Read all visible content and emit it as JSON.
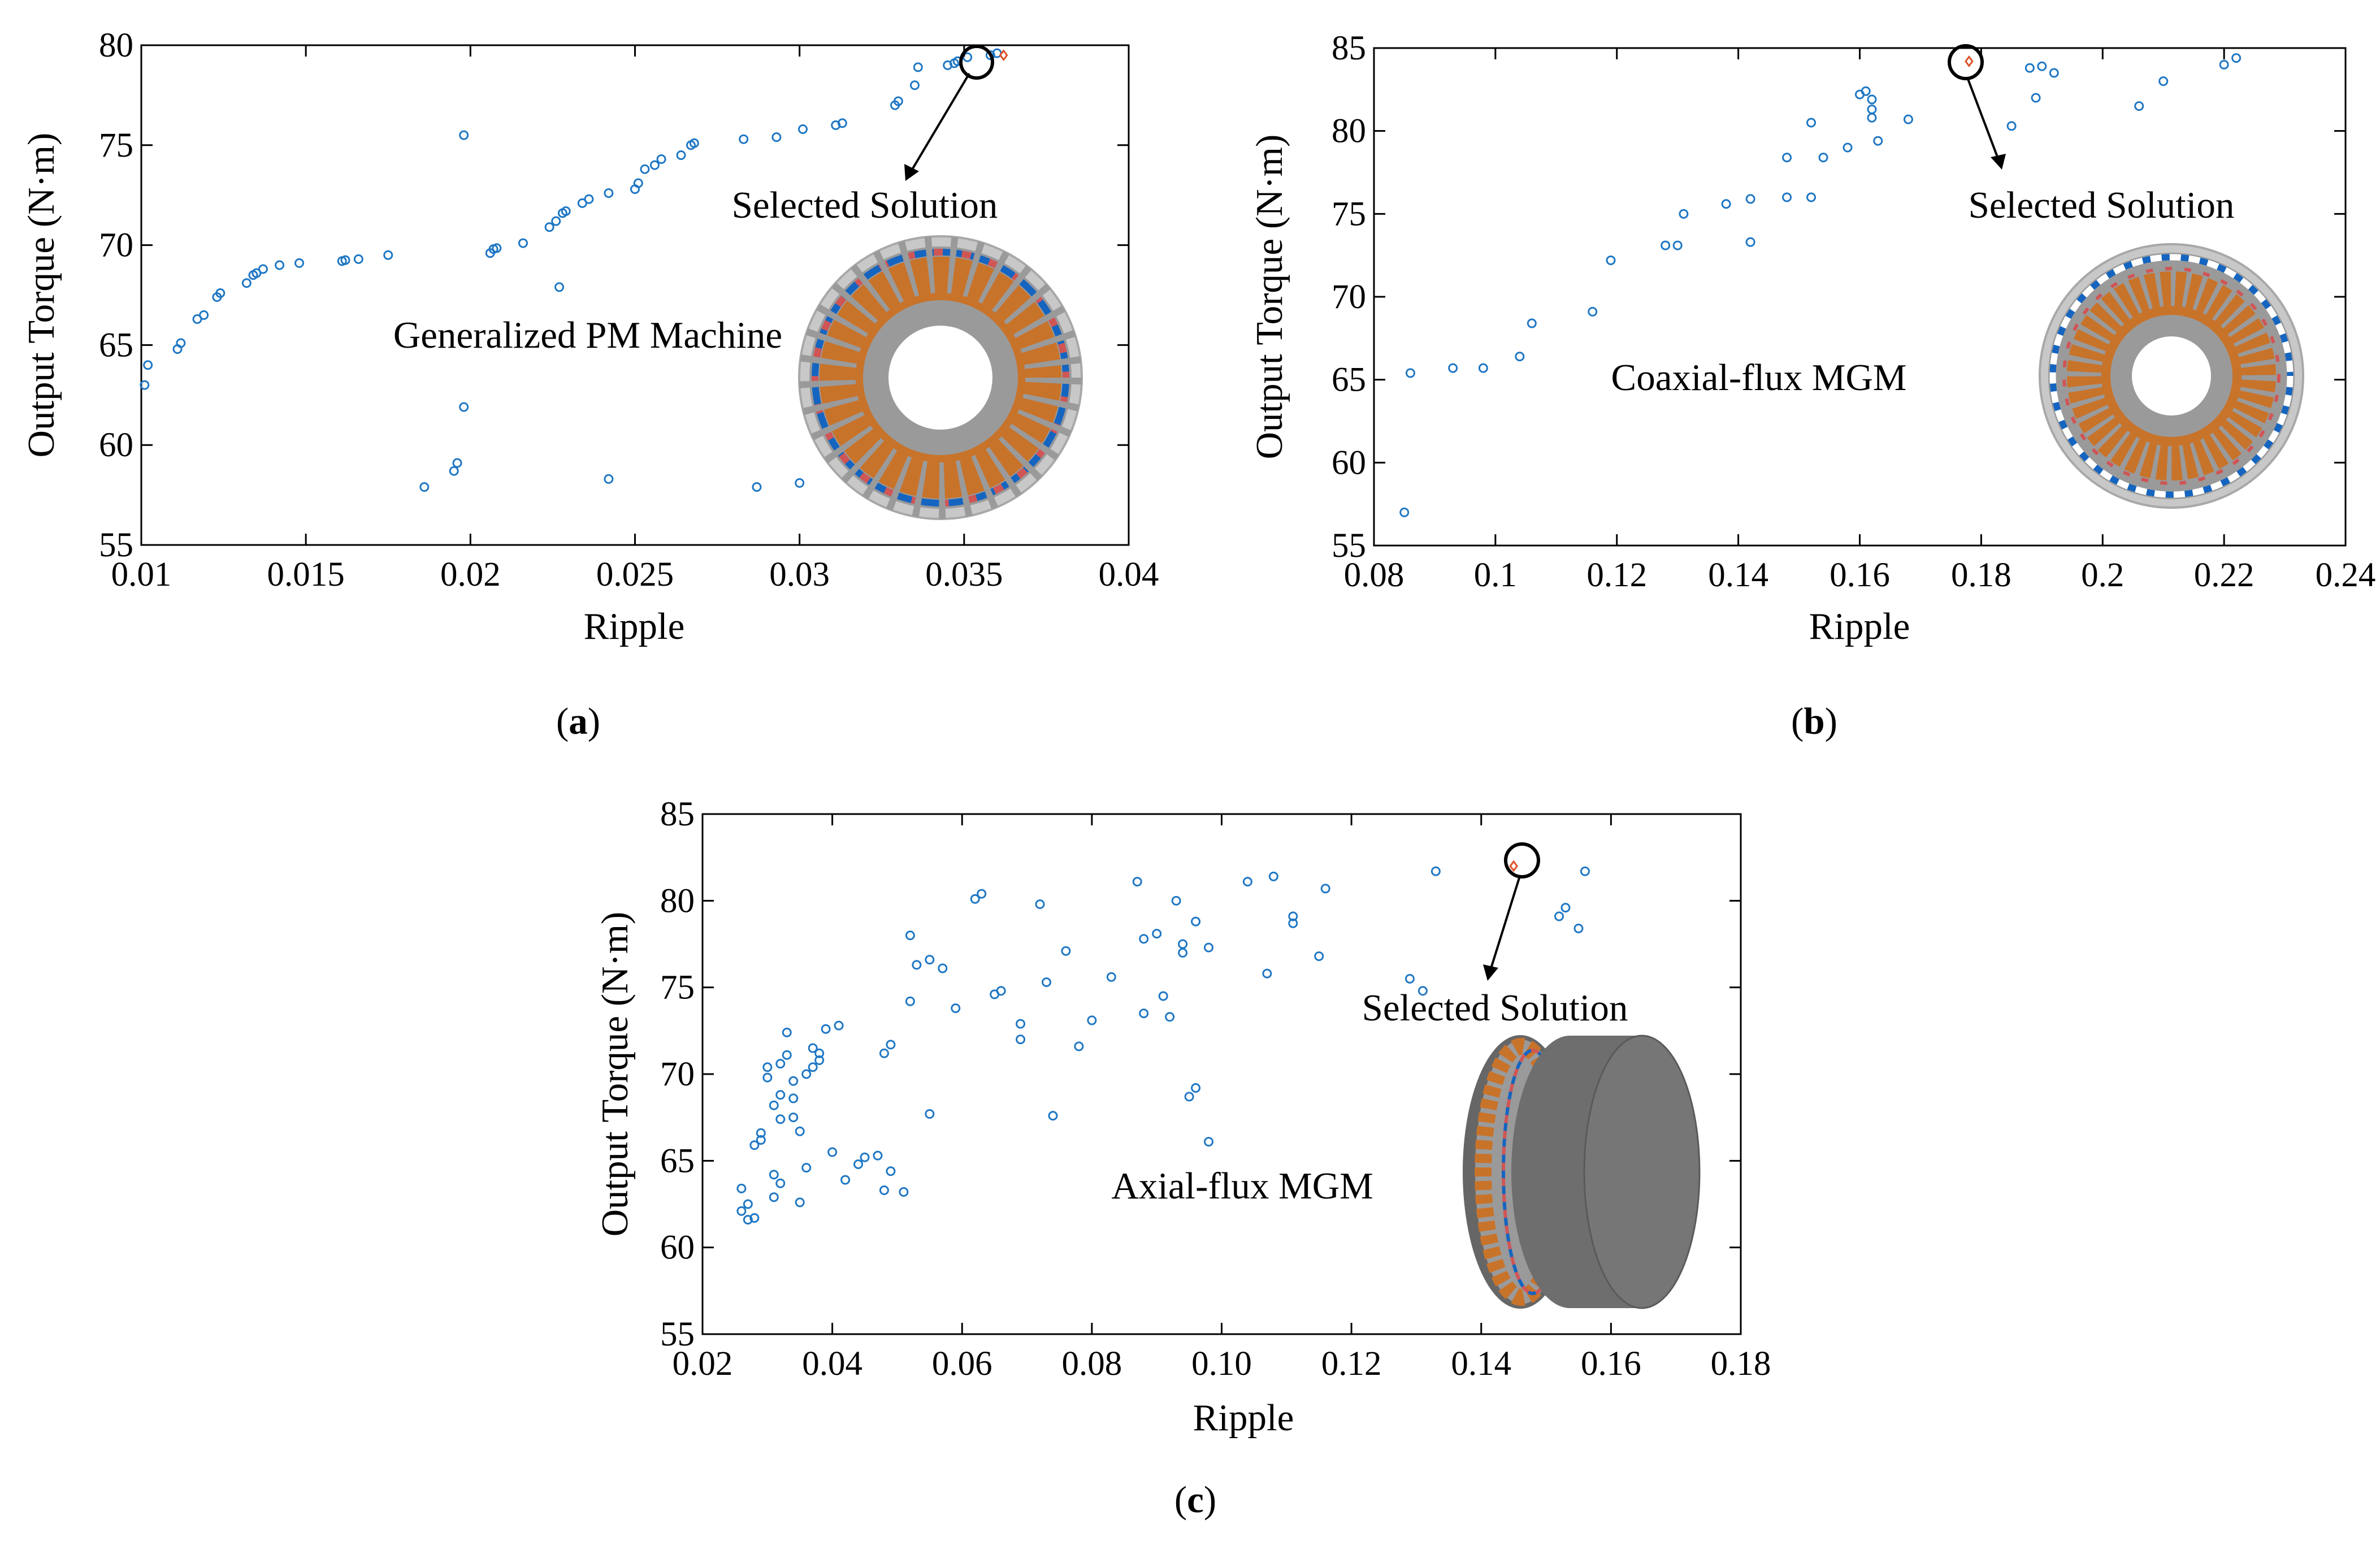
{
  "figure": {
    "captions": [
      {
        "open": "(",
        "letter": "a",
        "close": ")"
      },
      {
        "open": "(",
        "letter": "b",
        "close": ")"
      },
      {
        "open": "(",
        "letter": "c",
        "close": ")"
      }
    ]
  },
  "colors": {
    "point": "#1f77c4",
    "selected": "#e0502a",
    "frame": "#000000",
    "copper": "#c8732a",
    "steel": "#9a9a9a",
    "pm_blue": "#1565c0",
    "pm_red": "#d05555"
  },
  "chart_data": [
    {
      "type": "scatter",
      "panel": "a",
      "title": "",
      "xlabel": "Ripple",
      "ylabel": "Output Torque (N·m)",
      "xlim": [
        0.01,
        0.04
      ],
      "ylim": [
        55,
        80
      ],
      "xticks": [
        0.01,
        0.015,
        0.02,
        0.025,
        0.03,
        0.035,
        0.04
      ],
      "xtick_labels": [
        "0.01",
        "0.015",
        "0.02",
        "0.025",
        "0.03",
        "0.035",
        "0.04"
      ],
      "yticks": [
        55,
        60,
        65,
        70,
        75,
        80
      ],
      "ytick_labels": [
        "55",
        "60",
        "65",
        "70",
        "75",
        "80"
      ],
      "annotations": {
        "selected": "Selected Solution",
        "machine": "Generalized PM Machine"
      },
      "inset": "radial",
      "selected_point": [
        0.0362,
        79.5
      ],
      "points": [
        [
          0.0101,
          63.0
        ],
        [
          0.0102,
          64.0
        ],
        [
          0.0111,
          64.8
        ],
        [
          0.0112,
          65.1
        ],
        [
          0.0117,
          66.3
        ],
        [
          0.0119,
          66.5
        ],
        [
          0.0123,
          67.4
        ],
        [
          0.0124,
          67.6
        ],
        [
          0.0132,
          68.1
        ],
        [
          0.0134,
          68.5
        ],
        [
          0.0135,
          68.6
        ],
        [
          0.0137,
          68.8
        ],
        [
          0.0142,
          69.0
        ],
        [
          0.0148,
          69.1
        ],
        [
          0.0161,
          69.2
        ],
        [
          0.0162,
          69.25
        ],
        [
          0.0166,
          69.3
        ],
        [
          0.0175,
          69.5
        ],
        [
          0.0198,
          75.5
        ],
        [
          0.0206,
          69.6
        ],
        [
          0.0207,
          69.8
        ],
        [
          0.0208,
          69.85
        ],
        [
          0.0216,
          70.1
        ],
        [
          0.0224,
          70.9
        ],
        [
          0.0226,
          71.2
        ],
        [
          0.0228,
          71.6
        ],
        [
          0.0229,
          71.7
        ],
        [
          0.0234,
          72.1
        ],
        [
          0.0236,
          72.3
        ],
        [
          0.0242,
          72.6
        ],
        [
          0.025,
          72.8
        ],
        [
          0.0251,
          73.1
        ],
        [
          0.0253,
          73.8
        ],
        [
          0.0256,
          74.0
        ],
        [
          0.0258,
          74.3
        ],
        [
          0.0264,
          74.5
        ],
        [
          0.0267,
          75.0
        ],
        [
          0.0268,
          75.1
        ],
        [
          0.0283,
          75.3
        ],
        [
          0.0293,
          75.4
        ],
        [
          0.0301,
          75.8
        ],
        [
          0.0311,
          76.0
        ],
        [
          0.0313,
          76.1
        ],
        [
          0.0329,
          77.0
        ],
        [
          0.033,
          77.2
        ],
        [
          0.0335,
          78.0
        ],
        [
          0.0336,
          78.9
        ],
        [
          0.0345,
          79.0
        ],
        [
          0.0347,
          79.1
        ],
        [
          0.0348,
          79.2
        ],
        [
          0.0351,
          79.4
        ],
        [
          0.0358,
          79.5
        ],
        [
          0.036,
          79.6
        ],
        [
          0.0227,
          67.9
        ],
        [
          0.0198,
          61.9
        ],
        [
          0.0186,
          57.9
        ],
        [
          0.0195,
          58.7
        ],
        [
          0.0196,
          59.1
        ],
        [
          0.0242,
          58.3
        ],
        [
          0.0287,
          57.9
        ],
        [
          0.03,
          58.1
        ]
      ]
    },
    {
      "type": "scatter",
      "panel": "b",
      "title": "",
      "xlabel": "Ripple",
      "ylabel": "Output Torque (N·m)",
      "xlim": [
        0.08,
        0.24
      ],
      "ylim": [
        55,
        85
      ],
      "xticks": [
        0.08,
        0.1,
        0.12,
        0.14,
        0.16,
        0.18,
        0.2,
        0.22,
        0.24
      ],
      "xtick_labels": [
        "0.08",
        "0.1",
        "0.12",
        "0.14",
        "0.16",
        "0.18",
        "0.2",
        "0.22",
        "0.24"
      ],
      "yticks": [
        55,
        60,
        65,
        70,
        75,
        80,
        85
      ],
      "ytick_labels": [
        "55",
        "60",
        "65",
        "70",
        "75",
        "80",
        "85"
      ],
      "annotations": {
        "selected": "Selected Solution",
        "machine": "Coaxial-flux MGM"
      },
      "inset": "radial",
      "selected_point": [
        0.178,
        84.2
      ],
      "points": [
        [
          0.085,
          57.0
        ],
        [
          0.086,
          65.4
        ],
        [
          0.093,
          65.7
        ],
        [
          0.098,
          65.7
        ],
        [
          0.104,
          66.4
        ],
        [
          0.106,
          68.4
        ],
        [
          0.116,
          69.1
        ],
        [
          0.119,
          72.2
        ],
        [
          0.128,
          73.1
        ],
        [
          0.13,
          73.1
        ],
        [
          0.131,
          75.0
        ],
        [
          0.138,
          75.6
        ],
        [
          0.142,
          75.9
        ],
        [
          0.142,
          73.3
        ],
        [
          0.148,
          76.0
        ],
        [
          0.148,
          78.4
        ],
        [
          0.152,
          80.5
        ],
        [
          0.152,
          76.0
        ],
        [
          0.154,
          78.4
        ],
        [
          0.158,
          79.0
        ],
        [
          0.16,
          82.2
        ],
        [
          0.161,
          82.4
        ],
        [
          0.162,
          81.9
        ],
        [
          0.162,
          81.3
        ],
        [
          0.163,
          79.4
        ],
        [
          0.162,
          80.8
        ],
        [
          0.168,
          80.7
        ],
        [
          0.185,
          80.3
        ],
        [
          0.188,
          83.8
        ],
        [
          0.189,
          82.0
        ],
        [
          0.19,
          83.9
        ],
        [
          0.192,
          83.5
        ],
        [
          0.206,
          81.5
        ],
        [
          0.21,
          83.0
        ],
        [
          0.22,
          84.0
        ],
        [
          0.222,
          84.4
        ]
      ]
    },
    {
      "type": "scatter",
      "panel": "c",
      "title": "",
      "xlabel": "Ripple",
      "ylabel": "Output Torque (N·m)",
      "xlim": [
        0.02,
        0.18
      ],
      "ylim": [
        55,
        85
      ],
      "xticks": [
        0.02,
        0.04,
        0.06,
        0.08,
        0.1,
        0.12,
        0.14,
        0.16,
        0.18
      ],
      "xtick_labels": [
        "0.02",
        "0.04",
        "0.06",
        "0.08",
        "0.10",
        "0.12",
        "0.14",
        "0.16",
        "0.18"
      ],
      "yticks": [
        55,
        60,
        65,
        70,
        75,
        80,
        85
      ],
      "ytick_labels": [
        "55",
        "60",
        "65",
        "70",
        "75",
        "80",
        "85"
      ],
      "annotations": {
        "selected": "Selected Solution",
        "machine": "Axial-flux MGM"
      },
      "inset": "axial",
      "selected_point": [
        0.145,
        82.0
      ],
      "points": [
        [
          0.026,
          62.1
        ],
        [
          0.026,
          63.4
        ],
        [
          0.027,
          61.6
        ],
        [
          0.027,
          62.5
        ],
        [
          0.028,
          61.7
        ],
        [
          0.028,
          65.9
        ],
        [
          0.029,
          66.2
        ],
        [
          0.029,
          66.6
        ],
        [
          0.03,
          69.8
        ],
        [
          0.03,
          70.4
        ],
        [
          0.031,
          64.2
        ],
        [
          0.031,
          62.9
        ],
        [
          0.031,
          68.2
        ],
        [
          0.032,
          63.7
        ],
        [
          0.032,
          68.8
        ],
        [
          0.032,
          70.6
        ],
        [
          0.032,
          67.4
        ],
        [
          0.033,
          72.4
        ],
        [
          0.033,
          71.1
        ],
        [
          0.034,
          67.5
        ],
        [
          0.034,
          68.6
        ],
        [
          0.034,
          69.6
        ],
        [
          0.035,
          62.6
        ],
        [
          0.035,
          66.7
        ],
        [
          0.036,
          64.6
        ],
        [
          0.036,
          70.0
        ],
        [
          0.037,
          71.5
        ],
        [
          0.037,
          70.4
        ],
        [
          0.038,
          71.2
        ],
        [
          0.038,
          70.8
        ],
        [
          0.039,
          72.6
        ],
        [
          0.04,
          65.5
        ],
        [
          0.041,
          72.8
        ],
        [
          0.042,
          63.9
        ],
        [
          0.044,
          64.8
        ],
        [
          0.045,
          65.2
        ],
        [
          0.047,
          65.3
        ],
        [
          0.048,
          63.3
        ],
        [
          0.048,
          71.2
        ],
        [
          0.049,
          71.7
        ],
        [
          0.049,
          64.4
        ],
        [
          0.051,
          63.2
        ],
        [
          0.052,
          78.0
        ],
        [
          0.052,
          74.2
        ],
        [
          0.053,
          76.3
        ],
        [
          0.055,
          67.7
        ],
        [
          0.055,
          76.6
        ],
        [
          0.057,
          76.1
        ],
        [
          0.059,
          73.8
        ],
        [
          0.062,
          80.1
        ],
        [
          0.063,
          80.4
        ],
        [
          0.065,
          74.6
        ],
        [
          0.066,
          74.8
        ],
        [
          0.069,
          72.9
        ],
        [
          0.069,
          72.0
        ],
        [
          0.072,
          79.8
        ],
        [
          0.073,
          75.3
        ],
        [
          0.074,
          67.6
        ],
        [
          0.076,
          77.1
        ],
        [
          0.078,
          71.6
        ],
        [
          0.08,
          73.1
        ],
        [
          0.083,
          75.6
        ],
        [
          0.087,
          81.1
        ],
        [
          0.088,
          77.8
        ],
        [
          0.088,
          73.5
        ],
        [
          0.09,
          78.1
        ],
        [
          0.091,
          74.5
        ],
        [
          0.092,
          73.3
        ],
        [
          0.093,
          80.0
        ],
        [
          0.094,
          77.5
        ],
        [
          0.094,
          77.0
        ],
        [
          0.095,
          68.7
        ],
        [
          0.096,
          78.8
        ],
        [
          0.096,
          69.2
        ],
        [
          0.098,
          77.3
        ],
        [
          0.098,
          66.1
        ],
        [
          0.104,
          81.1
        ],
        [
          0.107,
          75.8
        ],
        [
          0.108,
          81.4
        ],
        [
          0.111,
          79.1
        ],
        [
          0.111,
          78.7
        ],
        [
          0.115,
          76.8
        ],
        [
          0.116,
          80.7
        ],
        [
          0.129,
          75.5
        ],
        [
          0.131,
          74.8
        ],
        [
          0.133,
          81.7
        ],
        [
          0.152,
          79.1
        ],
        [
          0.153,
          79.6
        ],
        [
          0.155,
          78.4
        ],
        [
          0.156,
          81.7
        ]
      ]
    }
  ]
}
